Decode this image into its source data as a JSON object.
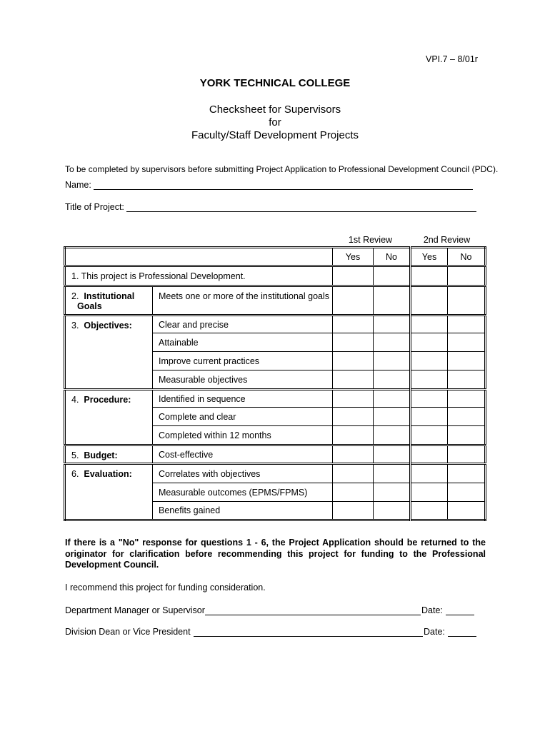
{
  "form_code": "VPI.7 – 8/01r",
  "institution": "YORK TECHNICAL COLLEGE",
  "title_lines": [
    "Checksheet for Supervisors",
    "for",
    "Faculty/Staff Development Projects"
  ],
  "instructions": "To be completed by supervisors before submitting Project Application to Professional Development Council (PDC).",
  "name_label": "Name:",
  "project_title_label": "Title of Project:",
  "table": {
    "review1": "1st Review",
    "review2": "2nd Review",
    "yes": "Yes",
    "no": "No",
    "row1": "1.  This project is Professional Development.",
    "groups": [
      {
        "num": "2.",
        "label": "Institutional",
        "label2": "Goals",
        "items": [
          "Meets one or more of the institutional goals"
        ]
      },
      {
        "num": "3.",
        "label": "Objectives:",
        "items": [
          "Clear and precise",
          "Attainable",
          "Improve current practices",
          "Measurable objectives"
        ]
      },
      {
        "num": "4.",
        "label": "Procedure:",
        "items": [
          "Identified in sequence",
          "Complete and clear",
          "Completed within 12 months"
        ]
      },
      {
        "num": "5.",
        "label": "Budget:",
        "items": [
          "Cost-effective"
        ]
      },
      {
        "num": "6.",
        "label": "Evaluation:",
        "items": [
          "Correlates with objectives",
          "Measurable outcomes (EPMS/FPMS)",
          "Benefits gained"
        ]
      }
    ]
  },
  "note": "If there is a \"No\" response for questions 1 - 6, the Project Application should be returned to the originator for clarification before recommending this project for funding to the Professional Development Council.",
  "recommend": "I recommend this project for funding consideration.",
  "sig1_label": "Department Manager or Supervisor",
  "sig2_label": "Division Dean or Vice President",
  "date_label": "Date:"
}
